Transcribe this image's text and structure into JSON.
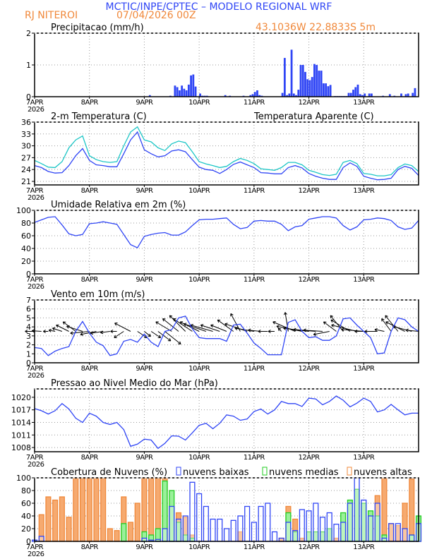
{
  "header": {
    "title": "MCTIC/INPE/CPTEC – MODELO REGIONAL WRF",
    "location": "RJ NITEROI",
    "run": "07/04/2026 00Z",
    "coords": "43.1036W 22.8833S 5m"
  },
  "colors": {
    "blue": "#2f45f5",
    "cyan": "#1cc6c6",
    "orange": "#f0883a",
    "green": "#22cc22",
    "black": "#000000"
  },
  "x_axis": {
    "ticks": [
      "7APR",
      "8APR",
      "9APR",
      "10APR",
      "11APR",
      "12APR",
      "13APR"
    ],
    "year": "2026",
    "start": "07APR 00Z",
    "step": "3h"
  },
  "chart_data": [
    {
      "type": "bar",
      "title": "Precipitacao (mm/h)",
      "ylim": [
        0,
        2
      ],
      "yticks": [
        "0",
        "1",
        "2"
      ],
      "grid": true,
      "bars": [
        [
          "09APR 02Z",
          0.05
        ],
        [
          "09APR 11Z",
          0.03
        ],
        [
          "09APR 13Z",
          0.35
        ],
        [
          "09APR 14Z",
          0.3
        ],
        [
          "09APR 15Z",
          0.2
        ],
        [
          "09APR 16Z",
          0.35
        ],
        [
          "09APR 17Z",
          0.25
        ],
        [
          "09APR 18Z",
          0.2
        ],
        [
          "09APR 19Z",
          0.38
        ],
        [
          "09APR 20Z",
          0.67
        ],
        [
          "09APR 21Z",
          0.7
        ],
        [
          "09APR 22Z",
          0.32
        ],
        [
          "10APR 00Z",
          0.1
        ],
        [
          "10APR 01Z",
          0.03
        ],
        [
          "10APR 02Z",
          0.03
        ],
        [
          "10APR 03Z",
          0.03
        ],
        [
          "10APR 11Z",
          0.05
        ],
        [
          "10APR 13Z",
          0.03
        ],
        [
          "10APR 19Z",
          0.03
        ],
        [
          "10APR 22Z",
          0.05
        ],
        [
          "10APR 23Z",
          0.08
        ],
        [
          "11APR 00Z",
          0.15
        ],
        [
          "11APR 01Z",
          0.2
        ],
        [
          "11APR 02Z",
          0.05
        ],
        [
          "11APR 03Z",
          0.03
        ],
        [
          "11APR 04Z",
          0.01
        ],
        [
          "11APR 05Z",
          0.01
        ],
        [
          "11APR 06Z",
          0.01
        ],
        [
          "11APR 07Z",
          0.01
        ],
        [
          "11APR 08Z",
          0.01
        ],
        [
          "11APR 09Z",
          0.01
        ],
        [
          "11APR 12Z",
          0.12
        ],
        [
          "11APR 13Z",
          1.22
        ],
        [
          "11APR 14Z",
          0.05
        ],
        [
          "11APR 15Z",
          0.1
        ],
        [
          "11APR 16Z",
          1.48
        ],
        [
          "11APR 17Z",
          0.1
        ],
        [
          "11APR 18Z",
          0.05
        ],
        [
          "11APR 19Z",
          0.22
        ],
        [
          "11APR 20Z",
          1.0
        ],
        [
          "11APR 21Z",
          1.0
        ],
        [
          "11APR 22Z",
          0.78
        ],
        [
          "11APR 23Z",
          0.55
        ],
        [
          "12APR 00Z",
          0.52
        ],
        [
          "12APR 01Z",
          0.62
        ],
        [
          "12APR 02Z",
          1.03
        ],
        [
          "12APR 03Z",
          1.0
        ],
        [
          "12APR 04Z",
          0.82
        ],
        [
          "12APR 05Z",
          0.82
        ],
        [
          "12APR 06Z",
          0.42
        ],
        [
          "12APR 07Z",
          0.42
        ],
        [
          "12APR 08Z",
          0.33
        ],
        [
          "12APR 09Z",
          0.37
        ],
        [
          "12APR 11Z",
          0.02
        ],
        [
          "12APR 12Z",
          0.02
        ],
        [
          "12APR 13Z",
          0.02
        ],
        [
          "12APR 14Z",
          0.02
        ],
        [
          "12APR 15Z",
          0.02
        ],
        [
          "12APR 16Z",
          0.02
        ],
        [
          "12APR 17Z",
          0.12
        ],
        [
          "12APR 18Z",
          0.12
        ],
        [
          "12APR 19Z",
          0.22
        ],
        [
          "12APR 20Z",
          0.3
        ],
        [
          "12APR 21Z",
          0.38
        ],
        [
          "12APR 22Z",
          0.08
        ],
        [
          "12APR 23Z",
          0.05
        ],
        [
          "13APR 00Z",
          0.1
        ],
        [
          "13APR 02Z",
          0.1
        ],
        [
          "13APR 03Z",
          0.1
        ],
        [
          "13APR 08Z",
          0.03
        ],
        [
          "13APR 11Z",
          0.08
        ],
        [
          "13APR 13Z",
          0.03
        ],
        [
          "13APR 16Z",
          0.1
        ],
        [
          "13APR 18Z",
          0.08
        ],
        [
          "13APR 19Z",
          0.1
        ],
        [
          "13APR 21Z",
          0.12
        ],
        [
          "13APR 22Z",
          0.27
        ]
      ]
    },
    {
      "type": "line",
      "title": "2-m Temperatura (C)",
      "ylim": [
        20.1,
        36
      ],
      "yticks": [
        "21",
        "24",
        "27",
        "30",
        "33",
        "36"
      ],
      "grid": true,
      "series": [
        {
          "name": "",
          "color": "#2f45f5",
          "values": [
            25,
            24.5,
            23.5,
            23.1,
            23.2,
            25,
            27.5,
            29.3,
            26.3,
            25.2,
            25,
            24.7,
            24.7,
            28,
            31.5,
            33.5,
            29,
            28,
            27.2,
            27.5,
            28.7,
            29,
            28.5,
            26.5,
            24.6,
            24,
            23.8,
            23,
            24,
            25.3,
            25.9,
            25.2,
            24.5,
            23.2,
            23.1,
            22.9,
            22.9,
            24.5,
            25,
            24.4,
            23,
            22.3,
            21.8,
            21.5,
            21.5,
            24.5,
            25.7,
            24.8,
            22.3,
            21.8,
            21.4,
            21.5,
            21.8,
            24,
            24.8,
            24.3,
            22.5
          ]
        },
        {
          "name": "Temperatura Aparente (C)",
          "color": "#1cc6c6",
          "values": [
            26.3,
            25.5,
            24.6,
            24.5,
            26,
            29.5,
            31.5,
            32.5,
            27.5,
            26.5,
            26,
            25.8,
            26,
            30,
            33.5,
            34.8,
            31.5,
            31,
            29.5,
            28.8,
            30.5,
            31.2,
            30.8,
            28.5,
            26,
            25.4,
            25,
            24.5,
            24.8,
            26,
            26.8,
            26.3,
            25.5,
            24.2,
            24,
            23.8,
            24.5,
            25.8,
            25.8,
            25.2,
            23.8,
            23.3,
            22.7,
            22.5,
            22.8,
            25.8,
            26.3,
            25.5,
            23,
            22.8,
            22.4,
            22.4,
            22.7,
            24.5,
            25.4,
            25,
            23.5
          ]
        }
      ]
    },
    {
      "type": "line",
      "title": "Umidade Relativa em 2m (%)",
      "ylim": [
        0,
        100
      ],
      "yticks": [
        "0",
        "20",
        "40",
        "60",
        "80",
        "100"
      ],
      "grid": true,
      "series": [
        {
          "name": "",
          "color": "#2f45f5",
          "values": [
            81,
            85,
            89,
            90,
            77,
            63,
            60,
            62,
            79,
            80,
            82,
            80,
            78,
            62,
            46,
            41,
            59,
            62,
            64,
            65,
            61,
            61,
            66,
            76,
            85,
            86,
            86,
            87,
            88,
            78,
            71,
            73,
            83,
            84,
            83,
            83,
            78,
            68,
            74,
            76,
            86,
            88,
            90,
            90,
            88,
            76,
            69,
            74,
            85,
            86,
            88,
            87,
            84,
            74,
            70,
            72,
            84
          ]
        }
      ]
    },
    {
      "type": "line",
      "title": "Vento em 10m (m/s)",
      "ylim": [
        0,
        7
      ],
      "yticks": [
        "0",
        "1",
        "2",
        "3",
        "4",
        "5",
        "6",
        "7"
      ],
      "grid": true,
      "series": [
        {
          "name": "",
          "color": "#2f45f5",
          "values": [
            1.7,
            1.6,
            0.8,
            1.3,
            1.6,
            1.8,
            3.5,
            4.6,
            3.3,
            2.3,
            1.9,
            0.8,
            1.0,
            2.4,
            2.6,
            2.3,
            3.2,
            2.3,
            1.8,
            3.5,
            3.7,
            5.0,
            5.2,
            3.8,
            2.8,
            2.7,
            2.7,
            2.7,
            2.4,
            4.2,
            4.3,
            3.3,
            2.2,
            1.6,
            0.9,
            0.9,
            0.9,
            4.5,
            4.8,
            3.5,
            2.8,
            2.9,
            2.5,
            2.5,
            3.0,
            4.9,
            5.0,
            4.2,
            3.5,
            2.8,
            1.0,
            1.1,
            3.5,
            5.0,
            4.8,
            4.0,
            3.5
          ]
        }
      ],
      "vectors": {
        "baseline": 3.5,
        "u": [
          -1.5,
          -1.5,
          -0.8,
          -1,
          -1.5,
          -2,
          -2,
          -2.5,
          -3,
          -2.5,
          -2,
          -1.5,
          -1,
          -1.5,
          -2.5,
          1.5,
          1,
          1.5,
          2,
          2.5,
          -2.5,
          -2.5,
          -2.5,
          -3,
          -3,
          -3.5,
          -3.5,
          -3,
          -2.5,
          -2.5,
          -1.5,
          -3.5,
          -3,
          -2,
          -1.5,
          -1,
          -0.5,
          -0.5,
          -3.5,
          -4,
          -4,
          -3.5,
          -3,
          -2.5,
          -2,
          -2,
          -3,
          -4,
          -3.5,
          -2.5,
          -2,
          -1.5,
          -1.5,
          -2,
          -3,
          -3,
          -2
        ],
        "v": [
          0,
          0.1,
          0,
          0.2,
          0.5,
          1,
          1.5,
          0.8,
          -0.3,
          -0.5,
          -0.3,
          -0.2,
          0,
          -1,
          1.3,
          -1,
          -0.8,
          -1,
          -1.5,
          -2,
          1.5,
          2,
          2.5,
          2,
          1.5,
          1.2,
          1,
          1,
          1,
          1.8,
          2.8,
          1.2,
          0.5,
          0.2,
          0,
          0,
          0.5,
          3,
          1.5,
          0.8,
          0.5,
          0.3,
          0.2,
          -0.5,
          1.5,
          2.5,
          1.8,
          1,
          0.3,
          0,
          0,
          0.3,
          2,
          2.5,
          1.5,
          0.8,
          0.2
        ]
      }
    },
    {
      "type": "line",
      "title": "Pressao ao Nivel Medio do Mar (hPa)",
      "ylim": [
        1007,
        1022
      ],
      "yticks": [
        "1008",
        "1011",
        "1014",
        "1017",
        "1020"
      ],
      "grid": true,
      "series": [
        {
          "name": "",
          "color": "#2f45f5",
          "values": [
            1017.3,
            1016.8,
            1016,
            1016.8,
            1018.5,
            1017.2,
            1015,
            1014,
            1016.2,
            1015.5,
            1014,
            1013.5,
            1014,
            1012.3,
            1008.3,
            1008.8,
            1010,
            1009.8,
            1007.8,
            1009,
            1010.8,
            1010.7,
            1009.8,
            1011.5,
            1013.3,
            1013.8,
            1012.5,
            1013.8,
            1015.8,
            1015.5,
            1014.5,
            1014.8,
            1016.6,
            1017.2,
            1016,
            1017,
            1019,
            1018.5,
            1018.5,
            1017.8,
            1019.8,
            1019.6,
            1018.2,
            1019,
            1020.3,
            1019.3,
            1017.7,
            1018.6,
            1019.8,
            1019,
            1016.5,
            1017,
            1018.3,
            1017,
            1015.8,
            1016.2,
            1016.2
          ]
        }
      ]
    },
    {
      "type": "bar",
      "title": "Cobertura de Nuvens (%)",
      "ylim": [
        0,
        100
      ],
      "yticks": [
        "0",
        "20",
        "40",
        "60",
        "80",
        "100"
      ],
      "grid": true,
      "legend": "top",
      "series": [
        {
          "name": "nuvens altas",
          "color": "#f0883a",
          "values": [
            0,
            42,
            70,
            65,
            70,
            38,
            100,
            100,
            100,
            100,
            100,
            20,
            17,
            70,
            30,
            60,
            100,
            100,
            100,
            100,
            55,
            45,
            38,
            10,
            0,
            0,
            0,
            0,
            0,
            0,
            15,
            0,
            0,
            0,
            0,
            0,
            5,
            55,
            35,
            5,
            0,
            0,
            0,
            0,
            5,
            10,
            30,
            20,
            25,
            30,
            72,
            100,
            28,
            25,
            60,
            98,
            20
          ]
        },
        {
          "name": "nuvens medias",
          "color": "#22cc22",
          "values": [
            0,
            0,
            0,
            0,
            0,
            0,
            0,
            0,
            0,
            0,
            0,
            0,
            0,
            28,
            0,
            0,
            15,
            10,
            20,
            95,
            80,
            30,
            10,
            5,
            0,
            0,
            0,
            0,
            0,
            0,
            0,
            0,
            0,
            0,
            0,
            0,
            0,
            45,
            15,
            0,
            15,
            15,
            15,
            20,
            0,
            45,
            65,
            82,
            60,
            48,
            40,
            10,
            0,
            0,
            0,
            10,
            40
          ]
        },
        {
          "name": "nuvens baixas",
          "color": "#2f45f5",
          "values": [
            2,
            8,
            0,
            0,
            0,
            0,
            0,
            0,
            0,
            0,
            0,
            0,
            0,
            0,
            0,
            0,
            5,
            2,
            3,
            20,
            55,
            35,
            40,
            93,
            75,
            55,
            35,
            35,
            20,
            33,
            40,
            55,
            30,
            55,
            60,
            15,
            5,
            30,
            17,
            50,
            48,
            60,
            38,
            45,
            27,
            30,
            60,
            100,
            65,
            40,
            60,
            5,
            28,
            28,
            20,
            10,
            28
          ]
        }
      ]
    }
  ]
}
